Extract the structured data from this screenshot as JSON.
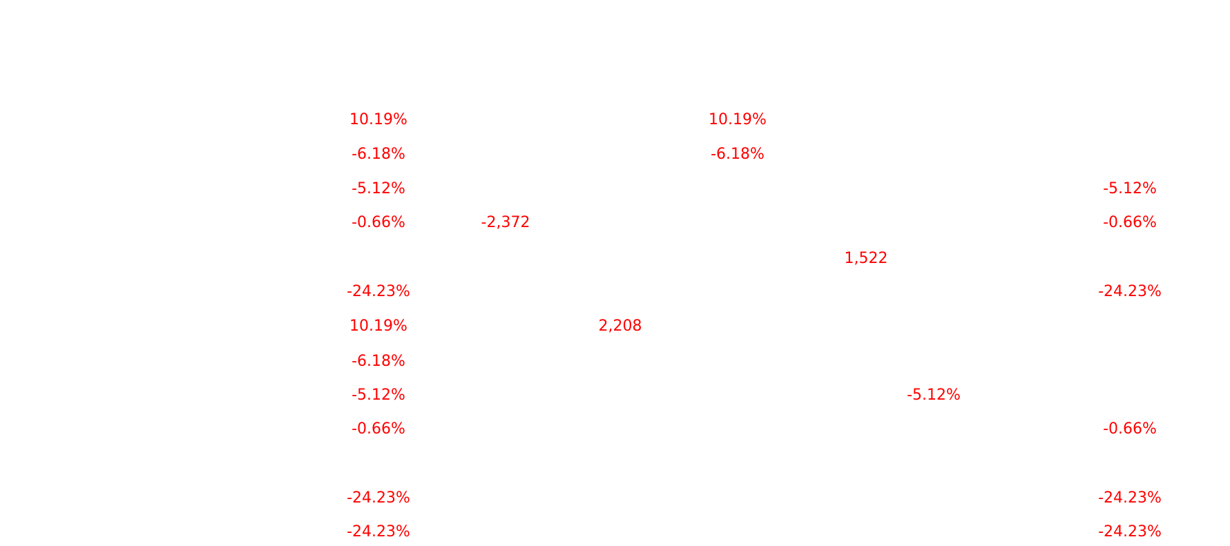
{
  "page": {
    "background": "#ffffff",
    "text_color": "#ff0000"
  },
  "labels": {
    "r1_c1": "10.19%",
    "r1_c2": "10.19%",
    "r2_c1": "-6.18%",
    "r2_c2": "-6.18%",
    "r3_c1": "-5.12%",
    "r3_c2": "-5.12%",
    "r4_c1": "-0.66%",
    "r4_c2": "-2,372",
    "r4_c3": "-0.66%",
    "r5_c1": "1,522",
    "r6_c1": "-24.23%",
    "r6_c2": "-24.23%",
    "r7_c1": "10.19%",
    "r7_c2": "2,208",
    "r8_c1": "-6.18%",
    "r9_c1": "-5.12%",
    "r9_c2": "-5.12%",
    "r10_c1": "-0.66%",
    "r10_c2": "-0.66%",
    "r11_c1": "-24.23%",
    "r11_c2": "-24.23%",
    "r12_c1": "-24.23%",
    "r12_c2": "-24.23%"
  }
}
